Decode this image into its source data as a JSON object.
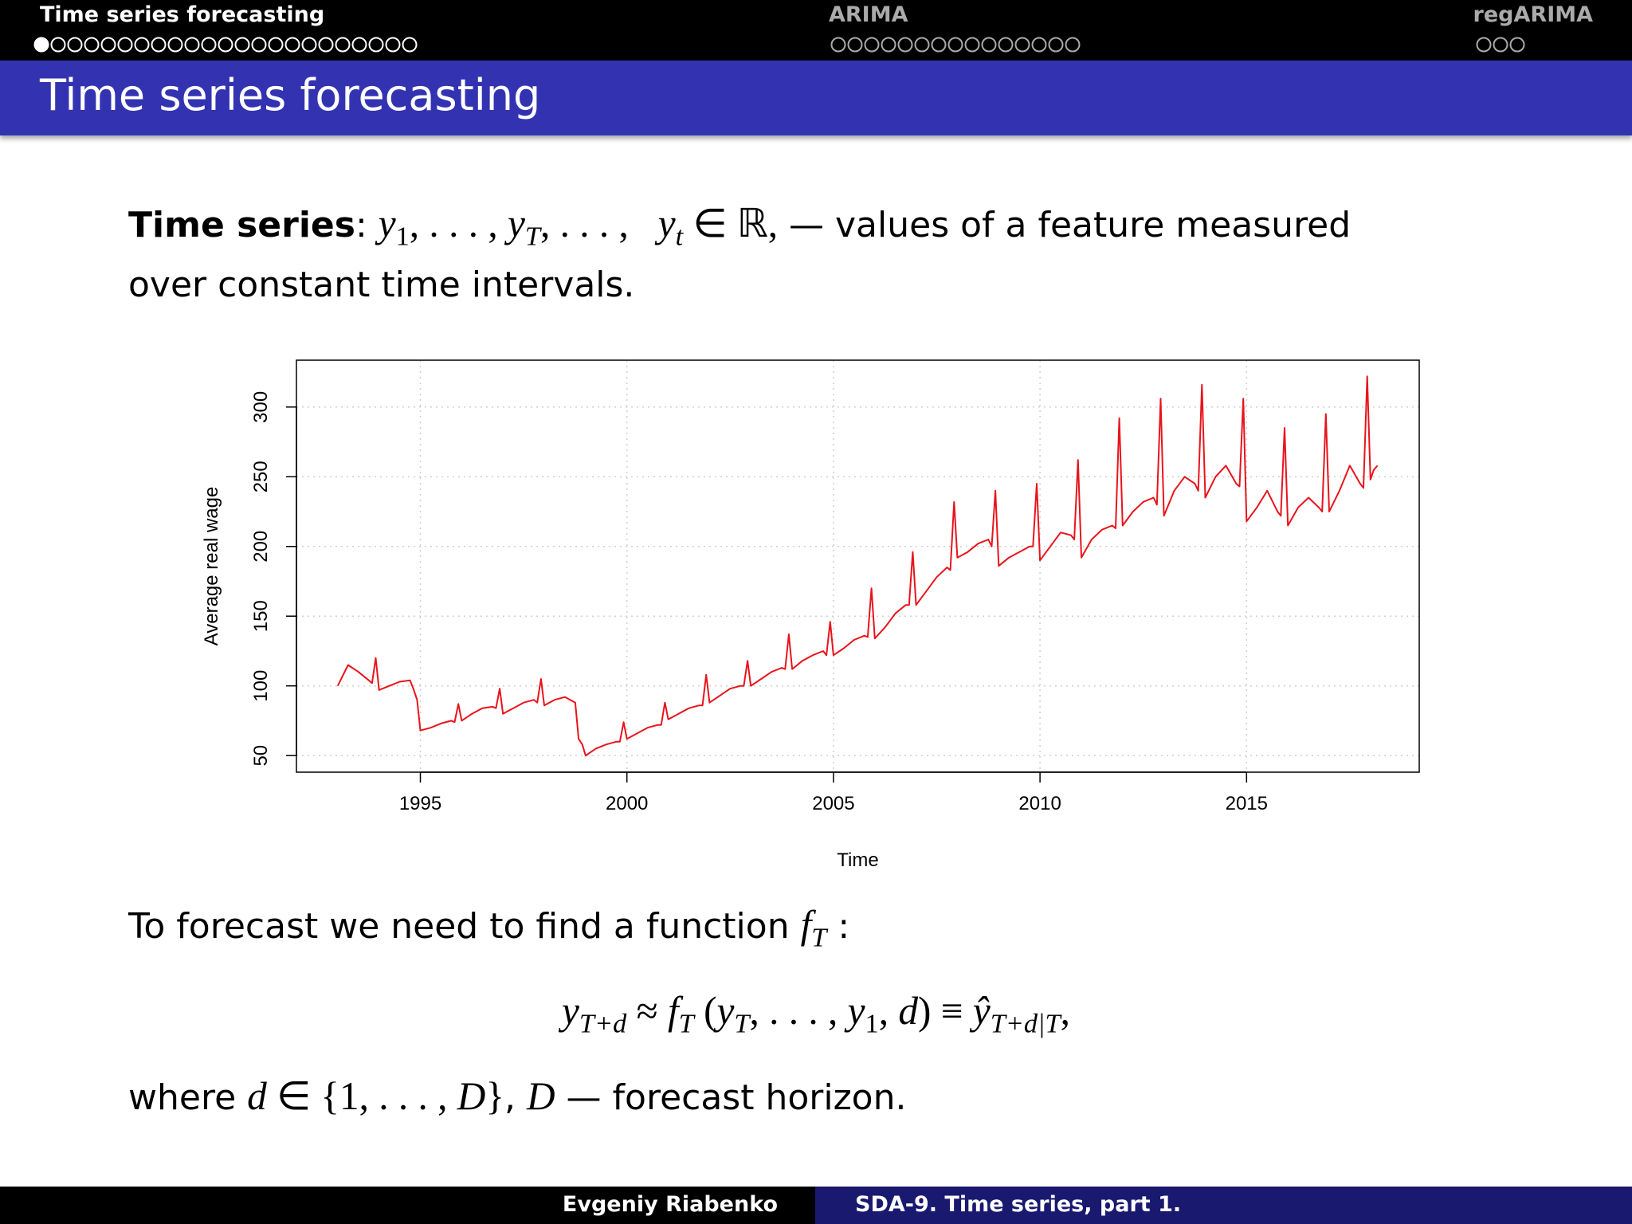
{
  "nav": {
    "sections": [
      "Time series forecasting",
      "ARIMA",
      "regARIMA"
    ]
  },
  "frame_title": "Time series forecasting",
  "body": {
    "p1": [
      {
        "text": "Time series",
        "style": "bold"
      },
      {
        "text": ": "
      },
      {
        "text": "y",
        "style": "math"
      },
      {
        "text": "1",
        "style": "sub"
      },
      {
        "text": ", . . . , ",
        "style": "upright"
      },
      {
        "text": "y",
        "style": "math"
      },
      {
        "text": "T",
        "style": "math-sub"
      },
      {
        "text": ", . . . ,   ",
        "style": "upright"
      },
      {
        "text": "y",
        "style": "math"
      },
      {
        "text": "t",
        "style": "math-sub"
      },
      {
        "text": " ∈ ℝ,",
        "style": "upright"
      },
      {
        "text": " — values of a feature measured over constant time intervals."
      }
    ],
    "p2": [
      {
        "text": "To forecast we need to find a function "
      },
      {
        "text": "f",
        "style": "math"
      },
      {
        "text": "T",
        "style": "math-sub"
      },
      {
        "text": " :"
      }
    ],
    "equation": [
      {
        "text": "y",
        "style": "math"
      },
      {
        "text": "T+d",
        "style": "math-sub"
      },
      {
        "text": " ≈ ",
        "style": "upright"
      },
      {
        "text": "f",
        "style": "math"
      },
      {
        "text": "T",
        "style": "math-sub"
      },
      {
        "text": " (",
        "style": "upright"
      },
      {
        "text": "y",
        "style": "math"
      },
      {
        "text": "T",
        "style": "math-sub"
      },
      {
        "text": ", . . . , ",
        "style": "upright"
      },
      {
        "text": "y",
        "style": "math"
      },
      {
        "text": "1",
        "style": "sub"
      },
      {
        "text": ", ",
        "style": "upright"
      },
      {
        "text": "d",
        "style": "math"
      },
      {
        "text": ") ≡ ",
        "style": "upright"
      },
      {
        "text": "ŷ",
        "style": "math"
      },
      {
        "text": "T+d|T",
        "style": "math-sub"
      },
      {
        "text": ",",
        "style": "upright"
      }
    ],
    "p3": [
      {
        "text": "where "
      },
      {
        "text": "d",
        "style": "math"
      },
      {
        "text": " ∈ {1, . . . , ",
        "style": "upright"
      },
      {
        "text": "D",
        "style": "math"
      },
      {
        "text": "}",
        "style": "upright"
      },
      {
        "text": ", "
      },
      {
        "text": "D",
        "style": "math"
      },
      {
        "text": " — forecast horizon."
      }
    ]
  },
  "footer": {
    "author": "Evgeniy Riabenko",
    "course": "SDA-9. Time series, part 1."
  },
  "chart_data": {
    "type": "line",
    "xlabel": "Time",
    "ylabel": "Average real wage",
    "color": "#e8141c",
    "grid": true,
    "xlim": [
      1992.0,
      2019.18
    ],
    "ylim": [
      38.1,
      333.6
    ],
    "xticks": [
      1995,
      2000,
      2005,
      2010,
      2015
    ],
    "yticks": [
      50,
      100,
      150,
      200,
      250,
      300
    ],
    "x": [
      1993,
      1993.25,
      1993.5,
      1993.75,
      1993.83,
      1993.92,
      1994,
      1994.25,
      1994.5,
      1994.75,
      1994.83,
      1994.92,
      1995,
      1995.25,
      1995.5,
      1995.75,
      1995.83,
      1995.92,
      1996,
      1996.25,
      1996.5,
      1996.75,
      1996.83,
      1996.92,
      1997,
      1997.25,
      1997.5,
      1997.75,
      1997.83,
      1997.92,
      1998,
      1998.25,
      1998.5,
      1998.75,
      1998.83,
      1998.92,
      1999,
      1999.25,
      1999.5,
      1999.75,
      1999.83,
      1999.92,
      2000,
      2000.25,
      2000.5,
      2000.75,
      2000.83,
      2000.92,
      2001,
      2001.25,
      2001.5,
      2001.75,
      2001.83,
      2001.92,
      2002,
      2002.25,
      2002.5,
      2002.75,
      2002.83,
      2002.92,
      2003,
      2003.25,
      2003.5,
      2003.75,
      2003.83,
      2003.92,
      2004,
      2004.25,
      2004.5,
      2004.75,
      2004.83,
      2004.92,
      2005,
      2005.25,
      2005.5,
      2005.75,
      2005.83,
      2005.92,
      2006,
      2006.25,
      2006.5,
      2006.75,
      2006.83,
      2006.92,
      2007,
      2007.25,
      2007.5,
      2007.75,
      2007.83,
      2007.92,
      2008,
      2008.25,
      2008.5,
      2008.75,
      2008.83,
      2008.92,
      2009,
      2009.25,
      2009.5,
      2009.75,
      2009.83,
      2009.92,
      2010,
      2010.25,
      2010.5,
      2010.75,
      2010.83,
      2010.92,
      2011,
      2011.25,
      2011.5,
      2011.75,
      2011.83,
      2011.92,
      2012,
      2012.25,
      2012.5,
      2012.75,
      2012.83,
      2012.92,
      2013,
      2013.25,
      2013.5,
      2013.75,
      2013.83,
      2013.92,
      2014,
      2014.25,
      2014.5,
      2014.75,
      2014.83,
      2014.92,
      2015,
      2015.25,
      2015.5,
      2015.75,
      2015.83,
      2015.92,
      2016,
      2016.25,
      2016.5,
      2016.75,
      2016.83,
      2016.92,
      2017,
      2017.25,
      2017.5,
      2017.75,
      2017.83,
      2017.92,
      2018,
      2018.08,
      2018.17
    ],
    "values": [
      100,
      115,
      110,
      104,
      102,
      120,
      97,
      100,
      103,
      104,
      98,
      90,
      68,
      70,
      73,
      75,
      74,
      87,
      75,
      80,
      84,
      85,
      84,
      98,
      80,
      84,
      88,
      90,
      88,
      105,
      86,
      90,
      92,
      88,
      62,
      58,
      50,
      55,
      58,
      60,
      60,
      74,
      62,
      66,
      70,
      72,
      72,
      88,
      76,
      80,
      84,
      86,
      86,
      108,
      88,
      93,
      98,
      100,
      100,
      118,
      100,
      105,
      110,
      113,
      112,
      137,
      112,
      118,
      122,
      125,
      122,
      146,
      122,
      127,
      133,
      136,
      135,
      170,
      134,
      142,
      152,
      158,
      158,
      196,
      158,
      168,
      178,
      185,
      183,
      232,
      192,
      196,
      202,
      205,
      200,
      240,
      186,
      192,
      196,
      200,
      200,
      245,
      190,
      200,
      210,
      208,
      205,
      262,
      192,
      205,
      212,
      215,
      213,
      292,
      215,
      225,
      232,
      235,
      230,
      306,
      222,
      240,
      250,
      245,
      240,
      316,
      235,
      250,
      258,
      245,
      243,
      306,
      218,
      228,
      240,
      225,
      222,
      285,
      215,
      228,
      235,
      228,
      225,
      295,
      225,
      240,
      258,
      245,
      242,
      322,
      248,
      255,
      258
    ]
  }
}
